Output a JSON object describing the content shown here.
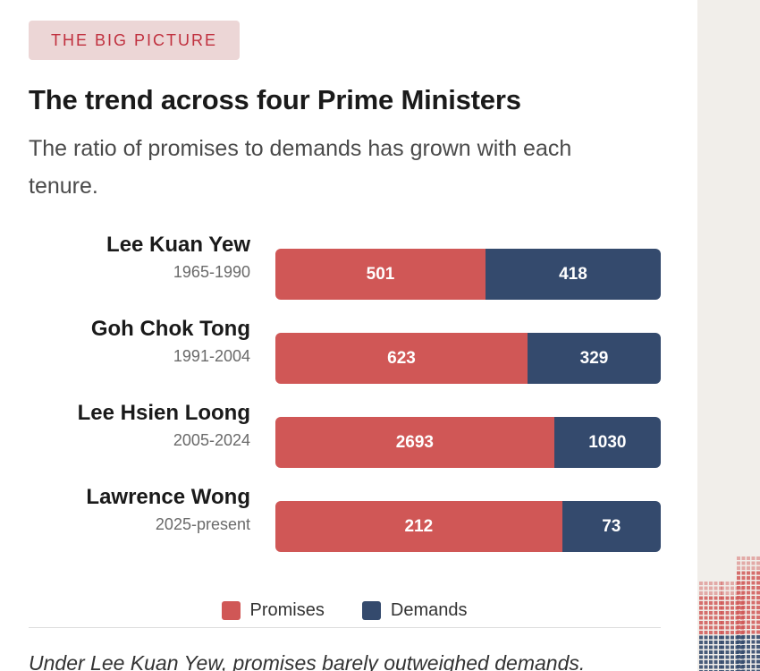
{
  "tag": "THE BIG PICTURE",
  "title": "The trend across four Prime Ministers",
  "subtitle": "The ratio of promises to demands has grown with each tenure.",
  "colors": {
    "promises": "#d05756",
    "demands": "#344a6d",
    "tag_bg": "#ecd6d6",
    "tag_text": "#c0303e",
    "sidebar_bg": "#f1eeea"
  },
  "chart_data": {
    "type": "bar",
    "stacked": true,
    "normalized": true,
    "orientation": "horizontal",
    "categories": [
      "Lee Kuan Yew",
      "Goh Chok Tong",
      "Lee Hsien Loong",
      "Lawrence Wong"
    ],
    "tenures": [
      "1965-1990",
      "1991-2004",
      "2005-2024",
      "2025-present"
    ],
    "series": [
      {
        "name": "Promises",
        "values": [
          501,
          623,
          2693,
          212
        ]
      },
      {
        "name": "Demands",
        "values": [
          418,
          329,
          1030,
          73
        ]
      }
    ],
    "legend_position": "bottom-center"
  },
  "caption": "Under Lee Kuan Yew, promises barely outweighed demands."
}
